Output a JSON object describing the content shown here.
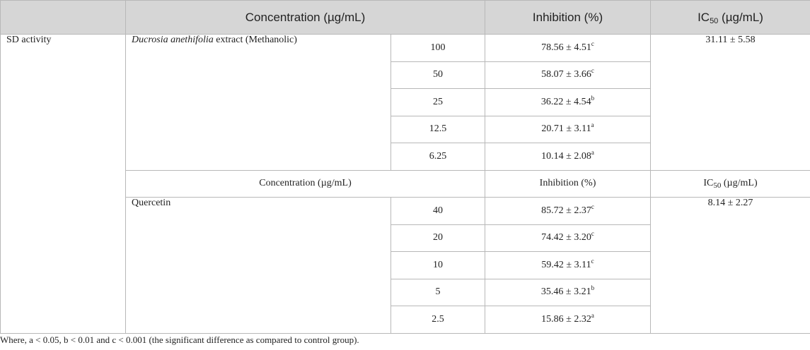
{
  "header": {
    "concentration": "Concentration (µg/mL)",
    "inhibition": "Inhibition (%)",
    "ic50_prefix": "IC",
    "ic50_sub": "50",
    "ic50_suffix": " (µg/mL)"
  },
  "row_label": "SD activity",
  "extract": {
    "name_italic": "Ducrosia anethifolia",
    "name_rest": " extract (Methanolic)",
    "ic50": "31.11 ± 5.58",
    "rows": [
      {
        "conc": "100",
        "value": "78.56 ± 4.51",
        "sig": "c"
      },
      {
        "conc": "50",
        "value": "58.07 ± 3.66",
        "sig": "c"
      },
      {
        "conc": "25",
        "value": "36.22 ± 4.54",
        "sig": "b"
      },
      {
        "conc": "12.5",
        "value": "20.71 ± 3.11",
        "sig": "a"
      },
      {
        "conc": "6.25",
        "value": "10.14 ± 2.08",
        "sig": "a"
      }
    ]
  },
  "subheader": {
    "concentration": "Concentration (µg/mL)",
    "inhibition": "Inhibition (%)",
    "ic50_prefix": "IC",
    "ic50_sub": "50",
    "ic50_suffix": " (µg/mL)"
  },
  "quercetin": {
    "name": "Quercetin",
    "ic50": "8.14 ± 2.27",
    "rows": [
      {
        "conc": "40",
        "value": "85.72 ± 2.37",
        "sig": "c"
      },
      {
        "conc": "20",
        "value": "74.42 ± 3.20",
        "sig": "c"
      },
      {
        "conc": "10",
        "value": "59.42 ± 3.11",
        "sig": "c"
      },
      {
        "conc": "5",
        "value": "35.46 ± 3.21",
        "sig": "b"
      },
      {
        "conc": "2.5",
        "value": "15.86 ± 2.32",
        "sig": "a"
      }
    ]
  },
  "footnote": "Where, a < 0.05, b < 0.01 and c < 0.001 (the significant difference as compared to control group)."
}
